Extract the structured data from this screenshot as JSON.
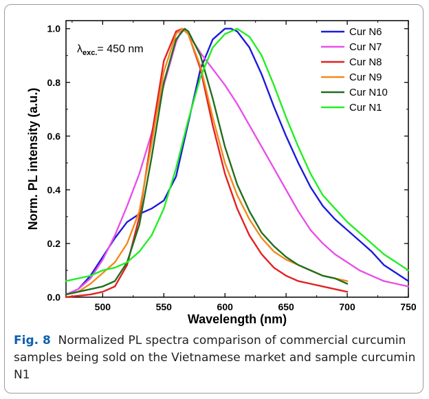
{
  "chart_data": {
    "type": "line",
    "xlabel": "Wavelength (nm)",
    "ylabel": "Norm. PL intensity (a.u.)",
    "xlim": [
      470,
      750
    ],
    "ylim": [
      0,
      1.03
    ],
    "xticks": [
      500,
      550,
      600,
      650,
      700,
      750
    ],
    "yticks": [
      0.0,
      0.2,
      0.4,
      0.6,
      0.8,
      1.0
    ],
    "annotation": {
      "symbol": "λ",
      "subscript": "exc.",
      "text": "= 450 nm"
    },
    "legend_position": "top-right",
    "series": [
      {
        "name": "Cur N6",
        "color": "#1a1adb",
        "x": [
          470,
          480,
          490,
          500,
          510,
          520,
          530,
          540,
          550,
          560,
          570,
          580,
          590,
          600,
          605,
          610,
          620,
          630,
          640,
          650,
          660,
          670,
          680,
          690,
          700,
          710,
          720,
          730,
          740,
          750
        ],
        "y": [
          0.01,
          0.03,
          0.08,
          0.15,
          0.22,
          0.28,
          0.31,
          0.33,
          0.36,
          0.45,
          0.65,
          0.85,
          0.96,
          1.0,
          1.0,
          0.99,
          0.93,
          0.83,
          0.71,
          0.6,
          0.5,
          0.41,
          0.34,
          0.29,
          0.25,
          0.21,
          0.17,
          0.12,
          0.09,
          0.06
        ]
      },
      {
        "name": "Cur N7",
        "color": "#e94fe8",
        "x": [
          470,
          480,
          490,
          500,
          510,
          520,
          530,
          540,
          550,
          560,
          565,
          570,
          580,
          590,
          600,
          610,
          620,
          630,
          640,
          650,
          660,
          670,
          680,
          690,
          700,
          710,
          720,
          730,
          740,
          750
        ],
        "y": [
          0.01,
          0.03,
          0.07,
          0.14,
          0.23,
          0.34,
          0.46,
          0.61,
          0.79,
          0.95,
          1.0,
          0.98,
          0.91,
          0.85,
          0.79,
          0.72,
          0.64,
          0.56,
          0.48,
          0.4,
          0.32,
          0.25,
          0.2,
          0.16,
          0.13,
          0.1,
          0.08,
          0.06,
          0.05,
          0.04
        ]
      },
      {
        "name": "Cur N8",
        "color": "#e32020",
        "x": [
          470,
          480,
          490,
          500,
          510,
          520,
          530,
          540,
          550,
          560,
          565,
          570,
          580,
          590,
          600,
          610,
          620,
          630,
          640,
          650,
          660,
          670,
          680,
          690,
          700
        ],
        "y": [
          0.0,
          0.005,
          0.01,
          0.02,
          0.04,
          0.12,
          0.3,
          0.6,
          0.88,
          0.99,
          1.0,
          0.98,
          0.85,
          0.64,
          0.46,
          0.33,
          0.23,
          0.16,
          0.11,
          0.08,
          0.06,
          0.05,
          0.04,
          0.03,
          0.02
        ]
      },
      {
        "name": "Cur N9",
        "color": "#f08a1c",
        "x": [
          470,
          480,
          490,
          500,
          510,
          520,
          530,
          540,
          550,
          560,
          565,
          570,
          580,
          590,
          600,
          610,
          620,
          630,
          640,
          650,
          660,
          670,
          680,
          690,
          700
        ],
        "y": [
          0.01,
          0.02,
          0.05,
          0.09,
          0.13,
          0.2,
          0.32,
          0.57,
          0.84,
          0.98,
          1.0,
          0.98,
          0.86,
          0.67,
          0.5,
          0.38,
          0.29,
          0.22,
          0.17,
          0.14,
          0.12,
          0.1,
          0.08,
          0.07,
          0.06
        ]
      },
      {
        "name": "Cur N10",
        "color": "#1f6e1f",
        "x": [
          470,
          480,
          490,
          500,
          510,
          520,
          530,
          540,
          550,
          560,
          567,
          570,
          580,
          590,
          600,
          610,
          620,
          630,
          640,
          650,
          660,
          670,
          680,
          690,
          700
        ],
        "y": [
          0.01,
          0.02,
          0.03,
          0.04,
          0.06,
          0.13,
          0.27,
          0.52,
          0.8,
          0.96,
          1.0,
          0.99,
          0.9,
          0.74,
          0.56,
          0.42,
          0.32,
          0.24,
          0.19,
          0.15,
          0.12,
          0.1,
          0.08,
          0.07,
          0.05
        ]
      },
      {
        "name": "Cur N1",
        "color": "#22ee22",
        "x": [
          470,
          480,
          490,
          500,
          510,
          520,
          530,
          540,
          550,
          560,
          570,
          580,
          590,
          600,
          610,
          620,
          630,
          640,
          650,
          660,
          670,
          680,
          690,
          700,
          710,
          720,
          730,
          740,
          750
        ],
        "y": [
          0.06,
          0.07,
          0.08,
          0.1,
          0.11,
          0.13,
          0.17,
          0.23,
          0.33,
          0.48,
          0.66,
          0.82,
          0.93,
          0.98,
          1.0,
          0.97,
          0.9,
          0.79,
          0.67,
          0.56,
          0.46,
          0.38,
          0.33,
          0.28,
          0.24,
          0.2,
          0.16,
          0.13,
          0.1
        ]
      }
    ]
  },
  "caption": {
    "label": "Fig. 8",
    "text": "Normalized PL spectra comparison of commercial curcumin samples being sold on the Vietnamese market and sample curcumin N1"
  }
}
